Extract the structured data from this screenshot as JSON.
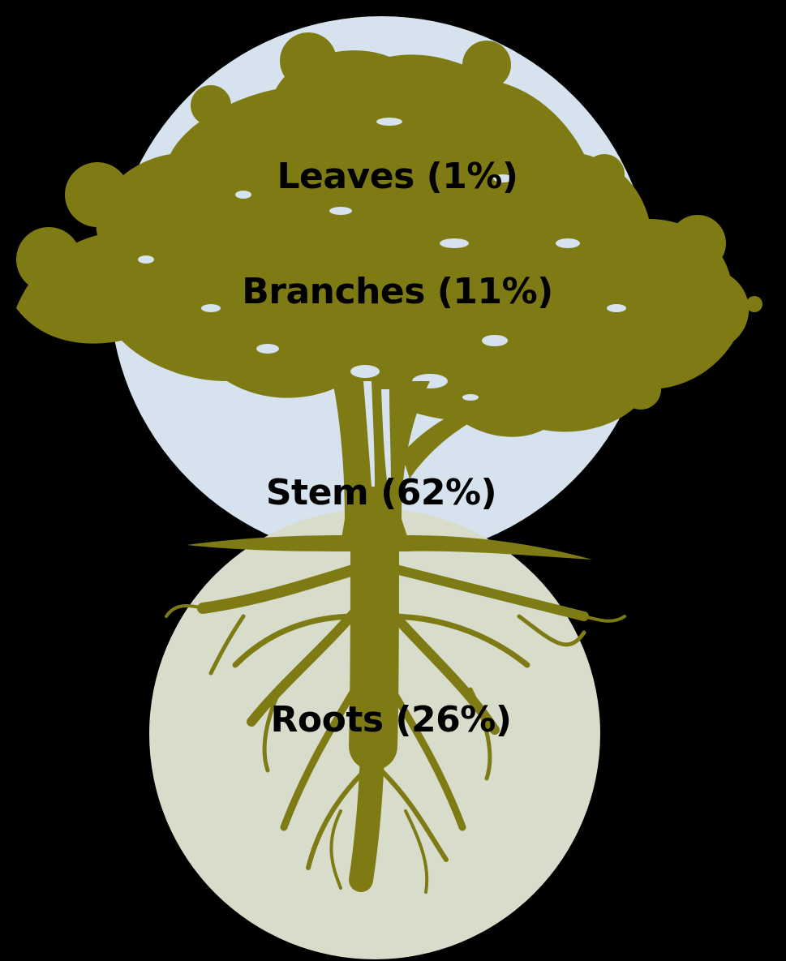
{
  "labels": {
    "leaves": "Leaves (1%)",
    "branches": "Branches (11%)",
    "stem": "Stem (62%)",
    "roots": "Roots (26%)"
  },
  "colors": {
    "background": "#000000",
    "sky_circle": "#d6e3ee",
    "soil_circle": "#d8dccb",
    "tree": "#7f7b14"
  },
  "icons": {
    "tree": "tree-silhouette-icon"
  }
}
